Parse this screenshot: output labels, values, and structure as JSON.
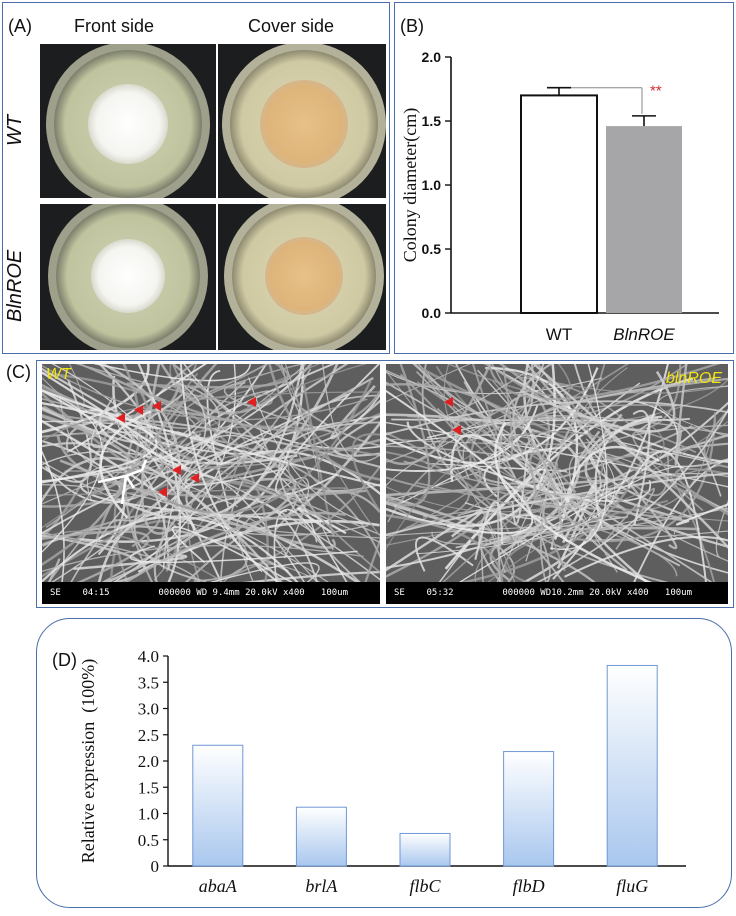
{
  "panel_a": {
    "letter": "(A)",
    "col_front": "Front side",
    "col_cover": "Cover side",
    "row_wt": "WT",
    "row_oe": "BlnROE"
  },
  "panel_c": {
    "letter": "(C)",
    "left_label": "WT",
    "right_label": "blnROE",
    "left_footer": "SE    04:15         000000 WD 9.4mm 20.0kV x400   100um",
    "right_footer": "SE    05:32         000000 WD10.2mm 20.0kV x400   100um"
  },
  "chart_data": [
    {
      "panel": "(B)",
      "type": "bar",
      "categories": [
        "WT",
        "BlnROE"
      ],
      "values": [
        1.7,
        1.46
      ],
      "errors": [
        0.06,
        0.08
      ],
      "bar_colors": [
        "#ffffff",
        "#a6a6a8"
      ],
      "ylabel": "Colony diameter(cm)",
      "ylim": [
        0,
        2.0
      ],
      "yticks": [
        "0.0",
        "0.5",
        "1.0",
        "1.5",
        "2.0"
      ],
      "significance": "**",
      "significance_color": "#d62b2b",
      "grid": false
    },
    {
      "panel": "(D)",
      "type": "bar",
      "categories": [
        "abaA",
        "brlA",
        "flbC",
        "flbD",
        "fluG"
      ],
      "values": [
        2.3,
        1.12,
        0.62,
        2.18,
        3.82
      ],
      "bar_color": "#a9c7ee",
      "ylabel": "Relative expression  (100%)",
      "ylim": [
        0,
        4.0
      ],
      "yticks": [
        "0",
        "0.5",
        "1.0",
        "1.5",
        "2.0",
        "2.5",
        "3.0",
        "3.5",
        "4.0"
      ],
      "grid": false
    }
  ]
}
